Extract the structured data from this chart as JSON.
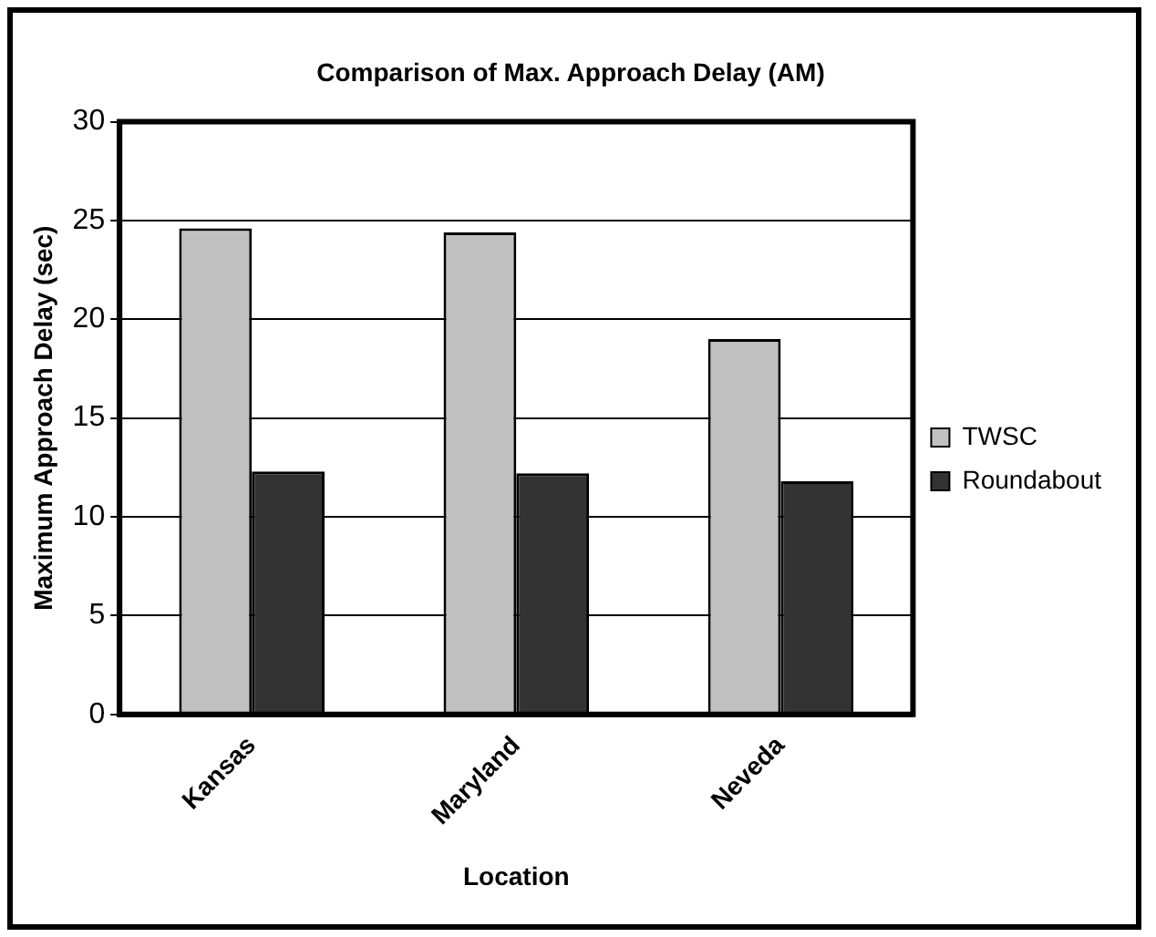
{
  "chart_data": {
    "type": "bar",
    "title": "Comparison of Max. Approach Delay (AM)",
    "xlabel": "Location",
    "ylabel": "Maximum Approach Delay (sec)",
    "categories": [
      "Kansas",
      "Maryland",
      "Neveda"
    ],
    "series": [
      {
        "name": "TWSC",
        "color": "#c0c0c0",
        "values": [
          24.6,
          24.4,
          19.0
        ]
      },
      {
        "name": "Roundabout",
        "color": "#333333",
        "values": [
          12.3,
          12.2,
          11.8
        ]
      }
    ],
    "ylim": [
      0,
      30
    ],
    "yticks": [
      0,
      5,
      10,
      15,
      20,
      25,
      30
    ],
    "grid": "y",
    "legend": "right"
  }
}
